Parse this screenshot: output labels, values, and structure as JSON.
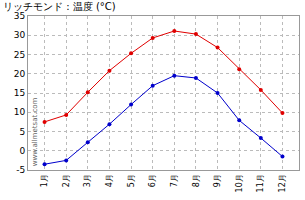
{
  "chart_data": {
    "type": "line",
    "title": "リッチモンド : 温度 (°C)",
    "annotations": [
      "www.allmetsat.com"
    ],
    "categories": [
      "1月",
      "2月",
      "3月",
      "4月",
      "5月",
      "6月",
      "7月",
      "8月",
      "9月",
      "10月",
      "11月",
      "12月"
    ],
    "series": [
      {
        "color": "#e00000",
        "marker": "circle",
        "values": [
          7.5,
          9.3,
          15.2,
          20.8,
          25.3,
          29.3,
          31.1,
          30.3,
          26.8,
          21.2,
          15.8,
          9.8
        ]
      },
      {
        "color": "#0000cc",
        "marker": "circle",
        "values": [
          -3.5,
          -2.5,
          2.2,
          6.9,
          12.0,
          16.9,
          19.5,
          18.9,
          15.0,
          7.9,
          3.3,
          -1.5
        ]
      }
    ],
    "ylim": [
      -5,
      35
    ],
    "yticks": [
      -5,
      0,
      5,
      10,
      15,
      20,
      25,
      30,
      35
    ],
    "grid": true
  }
}
